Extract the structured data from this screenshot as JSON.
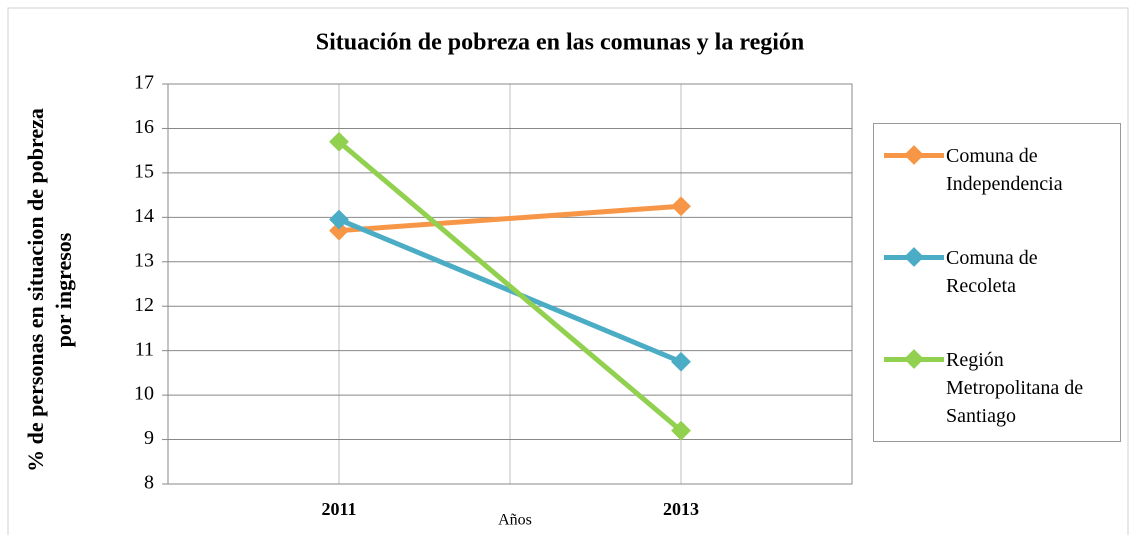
{
  "chart_data": {
    "type": "line",
    "title": "Situación de pobreza en las comunas y la región",
    "y_label": "% de personas en situacion de pobreza por ingresos",
    "x_label": "Años",
    "categories": [
      "2011",
      "2013"
    ],
    "series": [
      {
        "name": "Comuna de Independencia",
        "color": "#f79646",
        "values": [
          13.7,
          14.25
        ]
      },
      {
        "name": "Comuna de Recoleta",
        "color": "#4bacc6",
        "values": [
          13.95,
          10.75
        ]
      },
      {
        "name": "Región Metropolitana de Santiago",
        "color": "#92d050",
        "values": [
          15.7,
          9.2
        ]
      }
    ],
    "ylim": [
      8,
      17
    ],
    "yticks": [
      8,
      9,
      10,
      11,
      12,
      13,
      14,
      15,
      16,
      17
    ],
    "grid": true,
    "legend": "right"
  }
}
